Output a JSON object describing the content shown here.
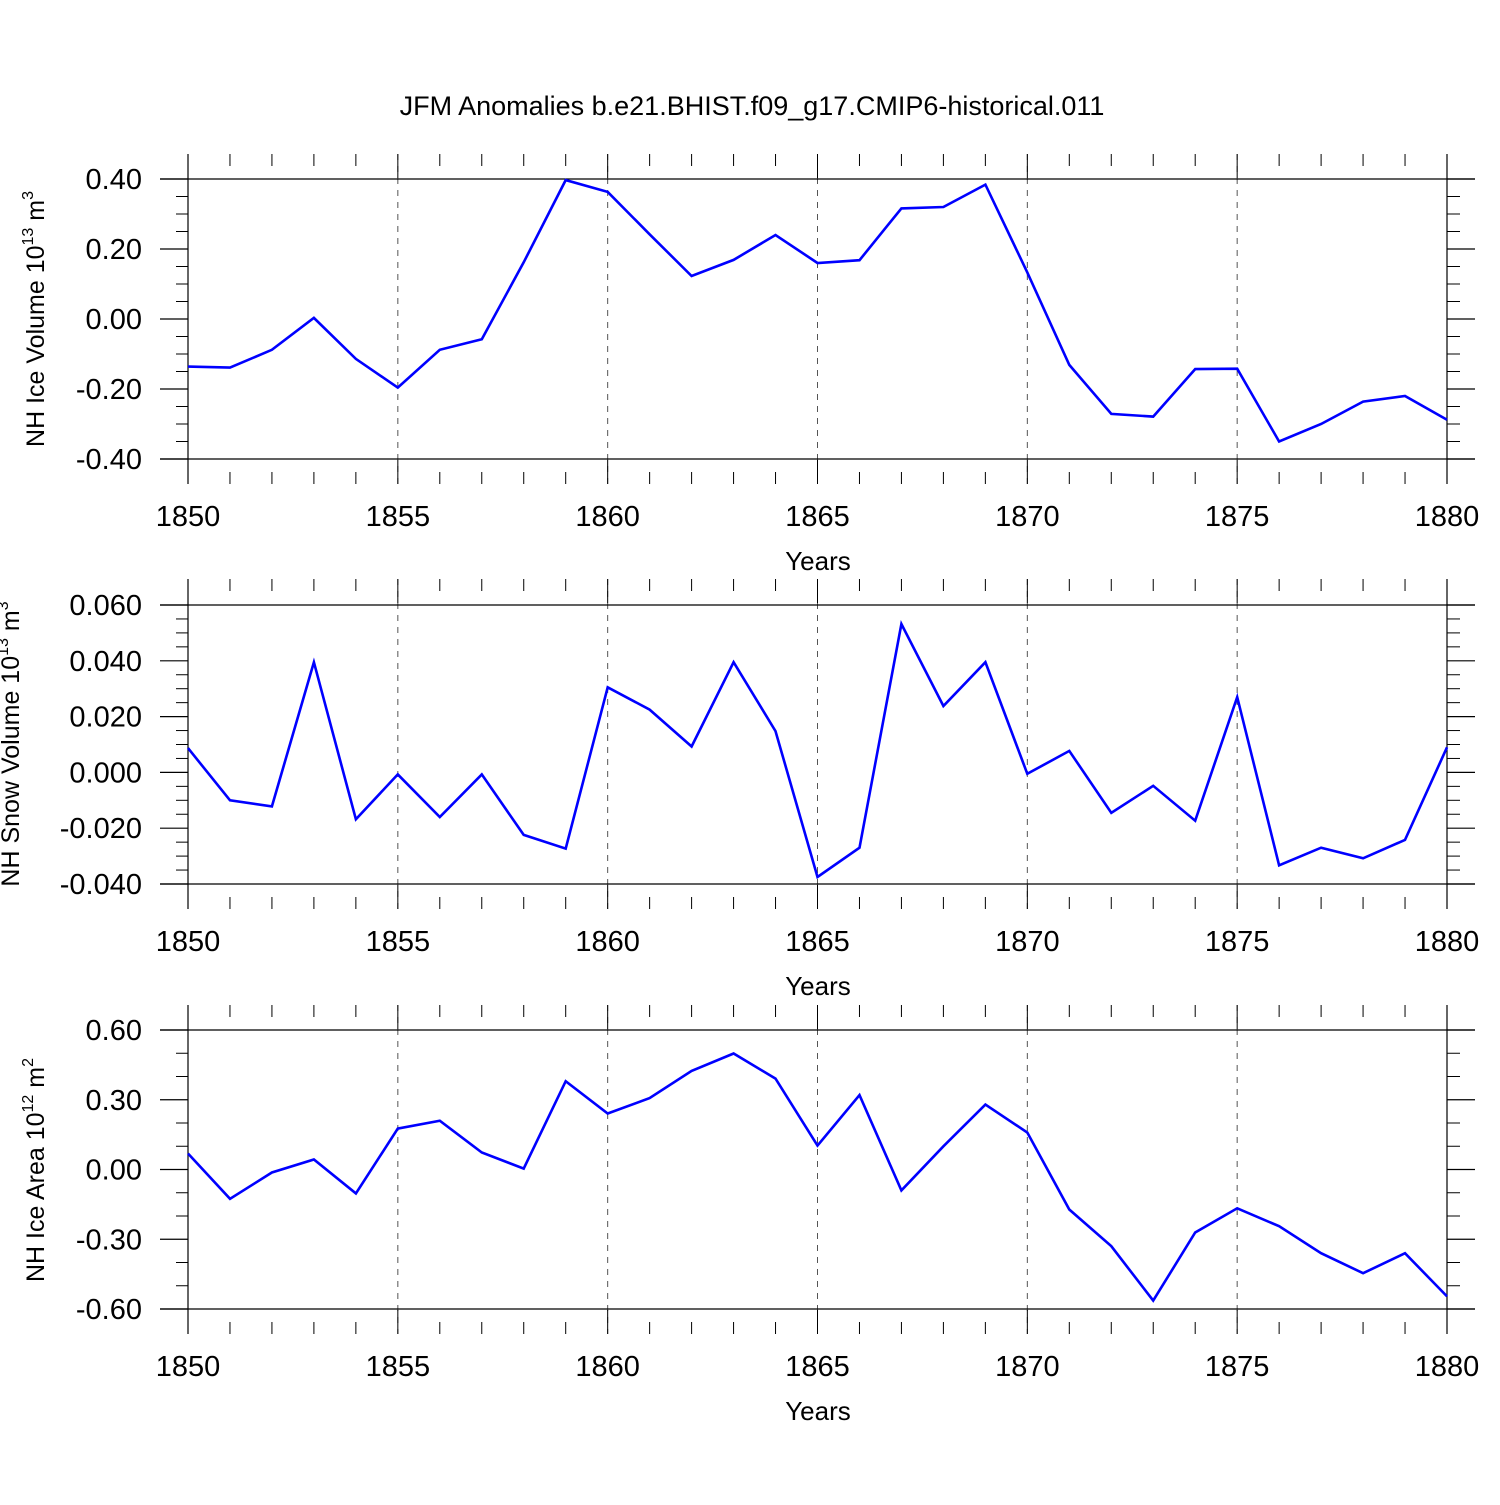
{
  "figure_title": "JFM Anomalies b.e21.BHIST.f09_g17.CMIP6-historical.011",
  "chart_data": [
    {
      "type": "line",
      "title": "JFM Anomalies b.e21.BHIST.f09_g17.CMIP6-historical.011",
      "xlabel": "Years",
      "ylabel": "NH Ice Volume 10",
      "ylabel_sup1": "13",
      "ylabel_mid": " m",
      "ylabel_sup2": "3",
      "xlim": [
        1850,
        1880
      ],
      "ylim": [
        -0.4,
        0.4
      ],
      "yticks": [
        -0.4,
        -0.2,
        0.0,
        0.2,
        0.4
      ],
      "ytick_labels": [
        "-0.40",
        "-0.20",
        "0.00",
        "0.20",
        "0.40"
      ],
      "yminor_step": 0.05,
      "xticks": [
        1850,
        1855,
        1860,
        1865,
        1870,
        1875,
        1880
      ],
      "xtick_labels": [
        "1850",
        "1855",
        "1860",
        "1865",
        "1870",
        "1875",
        "1880"
      ],
      "gridlines_x": [
        1855,
        1860,
        1865,
        1870,
        1875
      ],
      "line_color": "#0000ff",
      "x": [
        1850,
        1851,
        1852,
        1853,
        1854,
        1855,
        1856,
        1857,
        1858,
        1859,
        1860,
        1861,
        1862,
        1863,
        1864,
        1865,
        1866,
        1867,
        1868,
        1869,
        1870,
        1871,
        1872,
        1873,
        1874,
        1875,
        1876,
        1877,
        1878,
        1879,
        1880
      ],
      "values": [
        -0.136,
        -0.139,
        -0.088,
        0.003,
        -0.114,
        -0.196,
        -0.088,
        -0.058,
        0.162,
        0.397,
        0.363,
        0.242,
        0.123,
        0.169,
        0.24,
        0.16,
        0.168,
        0.316,
        0.32,
        0.384,
        0.133,
        -0.131,
        -0.271,
        -0.279,
        -0.143,
        -0.142,
        -0.35,
        -0.3,
        -0.236,
        -0.22,
        -0.288
      ]
    },
    {
      "type": "line",
      "xlabel": "Years",
      "ylabel": "NH Snow Volume 10",
      "ylabel_sup1": "13",
      "ylabel_mid": " m",
      "ylabel_sup2": "3",
      "xlim": [
        1850,
        1880
      ],
      "ylim": [
        -0.04,
        0.06
      ],
      "yticks": [
        -0.04,
        -0.02,
        0.0,
        0.02,
        0.04,
        0.06
      ],
      "ytick_labels": [
        "-0.040",
        "-0.020",
        "0.000",
        "0.020",
        "0.040",
        "0.060"
      ],
      "yminor_step": 0.005,
      "xticks": [
        1850,
        1855,
        1860,
        1865,
        1870,
        1875,
        1880
      ],
      "xtick_labels": [
        "1850",
        "1855",
        "1860",
        "1865",
        "1870",
        "1875",
        "1880"
      ],
      "gridlines_x": [
        1855,
        1860,
        1865,
        1870,
        1875
      ],
      "line_color": "#0000ff",
      "x": [
        1850,
        1851,
        1852,
        1853,
        1854,
        1855,
        1856,
        1857,
        1858,
        1859,
        1860,
        1861,
        1862,
        1863,
        1864,
        1865,
        1866,
        1867,
        1868,
        1869,
        1870,
        1871,
        1872,
        1873,
        1874,
        1875,
        1876,
        1877,
        1878,
        1879,
        1880
      ],
      "values": [
        0.0087,
        -0.01,
        -0.0122,
        0.0395,
        -0.0168,
        -0.0007,
        -0.016,
        -0.0007,
        -0.0224,
        -0.0273,
        0.0305,
        0.0225,
        0.0093,
        0.0395,
        0.0148,
        -0.0375,
        -0.027,
        0.0532,
        0.0238,
        0.0395,
        -0.0005,
        0.0077,
        -0.0145,
        -0.0048,
        -0.0173,
        0.027,
        -0.0333,
        -0.027,
        -0.0308,
        -0.0242,
        0.009
      ]
    },
    {
      "type": "line",
      "xlabel": "Years",
      "ylabel": "NH Ice Area 10",
      "ylabel_sup1": "12",
      "ylabel_mid": " m",
      "ylabel_sup2": "2",
      "xlim": [
        1850,
        1880
      ],
      "ylim": [
        -0.6,
        0.6
      ],
      "yticks": [
        -0.6,
        -0.3,
        0.0,
        0.3,
        0.6
      ],
      "ytick_labels": [
        "-0.60",
        "-0.30",
        "0.00",
        "0.30",
        "0.60"
      ],
      "yminor_step": 0.1,
      "xticks": [
        1850,
        1855,
        1860,
        1865,
        1870,
        1875,
        1880
      ],
      "xtick_labels": [
        "1850",
        "1855",
        "1860",
        "1865",
        "1870",
        "1875",
        "1880"
      ],
      "gridlines_x": [
        1855,
        1860,
        1865,
        1870,
        1875
      ],
      "line_color": "#0000ff",
      "x": [
        1850,
        1851,
        1852,
        1853,
        1854,
        1855,
        1856,
        1857,
        1858,
        1859,
        1860,
        1861,
        1862,
        1863,
        1864,
        1865,
        1866,
        1867,
        1868,
        1869,
        1870,
        1871,
        1872,
        1873,
        1874,
        1875,
        1876,
        1877,
        1878,
        1879,
        1880
      ],
      "values": [
        0.069,
        -0.126,
        -0.013,
        0.043,
        -0.103,
        0.176,
        0.21,
        0.073,
        0.004,
        0.38,
        0.241,
        0.307,
        0.424,
        0.499,
        0.391,
        0.103,
        0.32,
        -0.09,
        0.1,
        0.279,
        0.159,
        -0.172,
        -0.33,
        -0.564,
        -0.271,
        -0.167,
        -0.244,
        -0.36,
        -0.446,
        -0.36,
        -0.546
      ]
    }
  ]
}
